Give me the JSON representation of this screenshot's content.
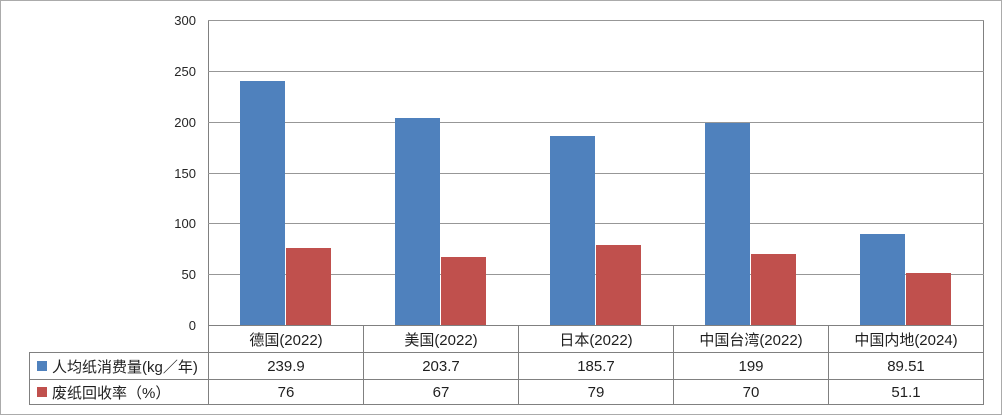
{
  "chart_data": {
    "type": "bar",
    "title": "",
    "xlabel": "",
    "ylabel": "",
    "categories": [
      "德国(2022)",
      "美国(2022)",
      "日本(2022)",
      "中国台湾(2022)",
      "中国内地(2024)"
    ],
    "series": [
      {
        "name": "人均纸消费量(kg／年)",
        "color": "#4F81BD",
        "values": [
          239.9,
          203.7,
          185.7,
          199,
          89.51
        ]
      },
      {
        "name": "废纸回收率（%）",
        "color": "#C0504D",
        "values": [
          76,
          67,
          79,
          70,
          51.1
        ]
      }
    ],
    "ylim": [
      0,
      300
    ],
    "yticks": [
      300,
      250,
      200,
      150,
      100,
      50,
      0
    ],
    "grid": true,
    "legend_position": "left-of-data-table",
    "data_table_shown": true
  },
  "colors": {
    "series_1": "#4F81BD",
    "series_2": "#C0504D",
    "gridline": "#979797",
    "table_border": "#808080",
    "text": "#262626",
    "background": "#FFFFFF",
    "frame_border": "#ABABAB"
  }
}
